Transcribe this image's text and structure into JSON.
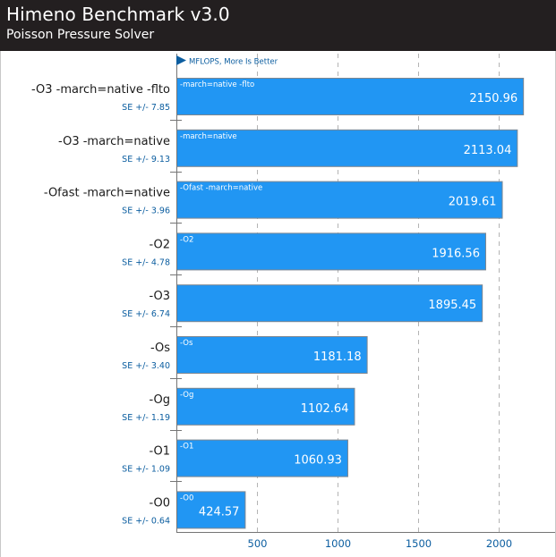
{
  "header": {
    "title": "Himeno Benchmark v3.0",
    "subtitle": "Poisson Pressure Solver"
  },
  "chart_data": {
    "type": "bar",
    "orientation": "horizontal",
    "title": "Himeno Benchmark v3.0",
    "subtitle": "Poisson Pressure Solver",
    "metric_note": "MFLOPS, More Is Better",
    "xlim": [
      0,
      2350
    ],
    "xticks": [
      500,
      1000,
      1500,
      2000
    ],
    "grid": true,
    "bar_color": "#2196f3",
    "accent_color": "#0c5ea0",
    "categories": [
      "-O3 -march=native -flto",
      "-O3 -march=native",
      "-Ofast -march=native",
      "-O2",
      "-O3",
      "-Os",
      "-Og",
      "-O1",
      "-O0"
    ],
    "bar_labels": [
      "-march=native -flto",
      "-march=native",
      "-Ofast -march=native",
      "-O2",
      "",
      "-Os",
      "-Og",
      "-O1",
      "-O0"
    ],
    "values": [
      2150.96,
      2113.04,
      2019.61,
      1916.56,
      1895.45,
      1181.18,
      1102.64,
      1060.93,
      424.57
    ],
    "value_labels": [
      "2150.96",
      "2113.04",
      "2019.61",
      "1916.56",
      "1895.45",
      "1181.18",
      "1102.64",
      "1060.93",
      "424.57"
    ],
    "errors": [
      "SE +/- 7.85",
      "SE +/- 9.13",
      "SE +/- 3.96",
      "SE +/- 4.78",
      "SE +/- 6.74",
      "SE +/- 3.40",
      "SE +/- 1.19",
      "SE +/- 1.09",
      "SE +/- 0.64"
    ]
  }
}
